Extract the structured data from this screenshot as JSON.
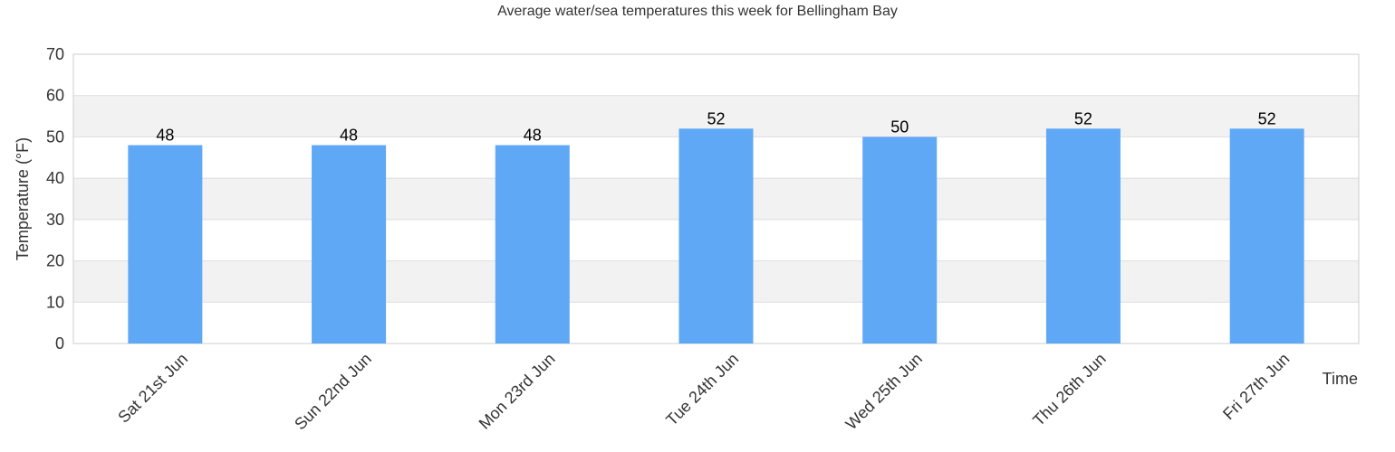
{
  "chart_data": {
    "type": "bar",
    "title": "Average water/sea temperatures this week for Bellingham Bay",
    "xlabel": "Time",
    "ylabel": "Temperature (°F)",
    "categories": [
      "Sat 21st Jun",
      "Sun 22nd Jun",
      "Mon 23rd Jun",
      "Tue 24th Jun",
      "Wed 25th Jun",
      "Thu 26th Jun",
      "Fri 27th Jun"
    ],
    "values": [
      48,
      48,
      48,
      52,
      50,
      52,
      52
    ],
    "ylim": [
      0,
      70
    ],
    "yticks": [
      0,
      10,
      20,
      30,
      40,
      50,
      60,
      70
    ],
    "grid": true,
    "legend": "none",
    "colors": {
      "bar": "#5fa8f5",
      "band_alt": "#f2f2f2",
      "grid": "#dddddd",
      "axis": "#cccccc"
    }
  }
}
